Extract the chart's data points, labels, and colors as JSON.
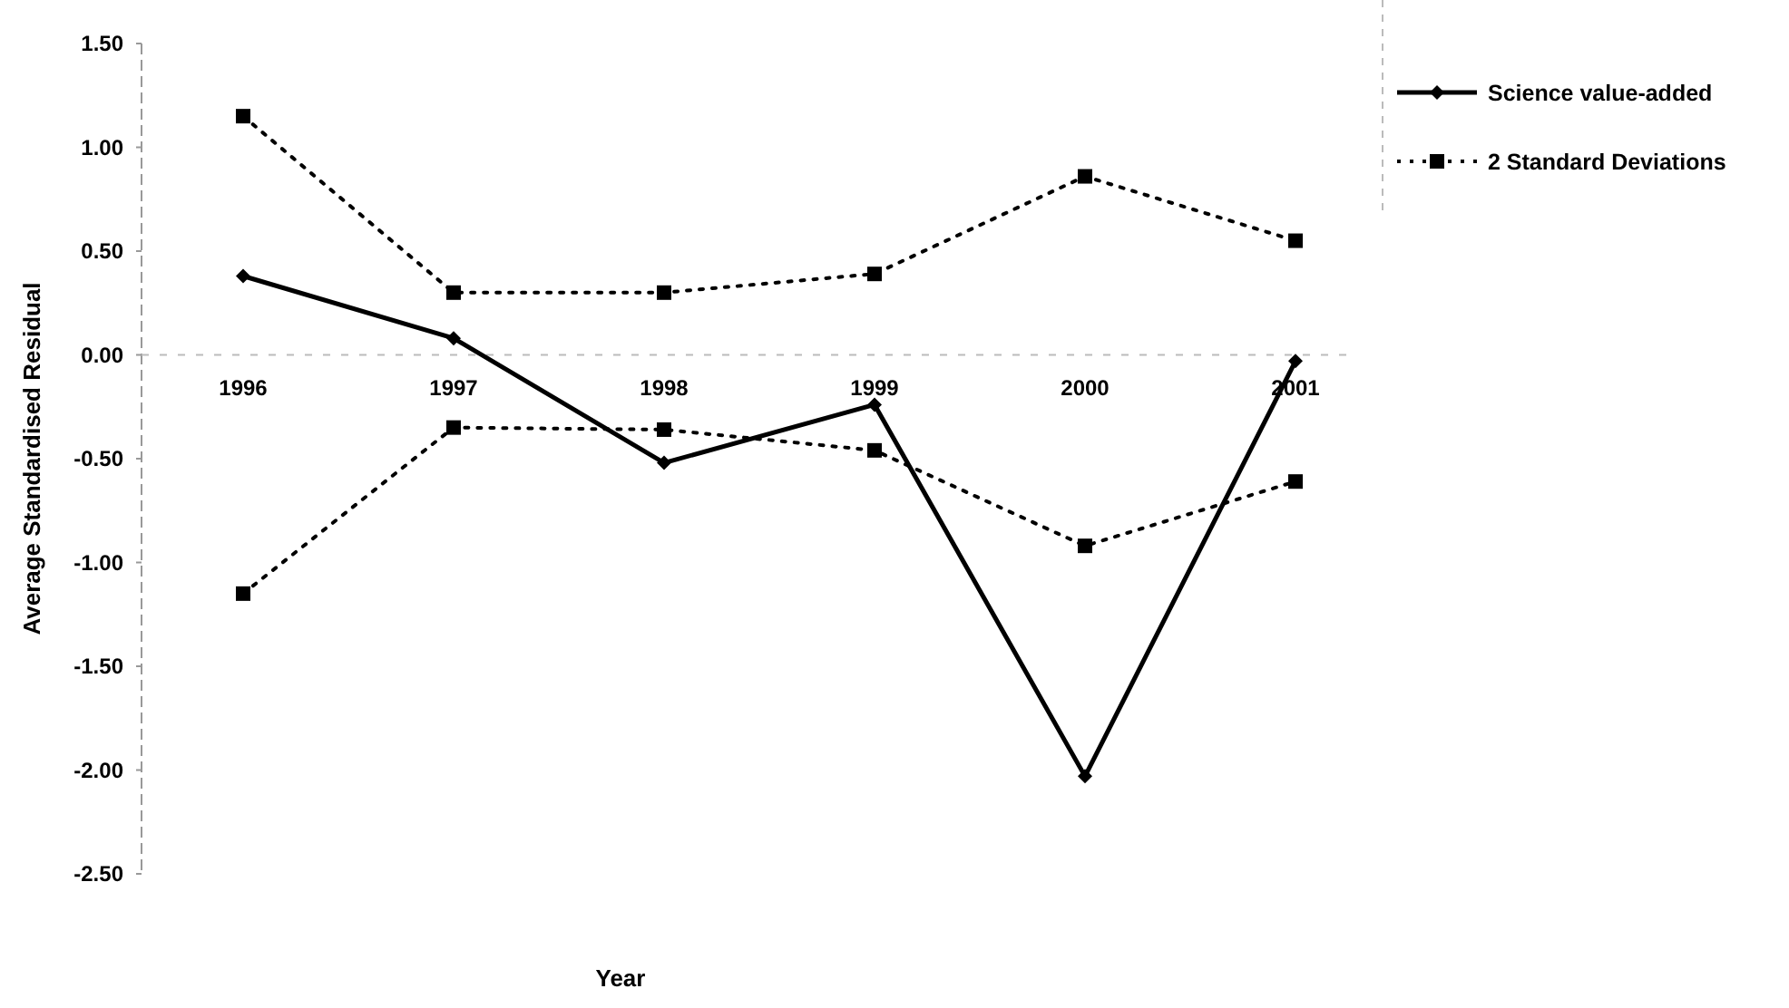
{
  "chart_data": {
    "type": "line",
    "xlabel": "Year",
    "ylabel": "Average Standardised Residual",
    "categories": [
      "1996",
      "1997",
      "1998",
      "1999",
      "2000",
      "2001"
    ],
    "series": [
      {
        "name": "Science value-added",
        "color": "#000000",
        "marker": "diamond",
        "line_style": "solid",
        "values": [
          0.38,
          0.08,
          -0.52,
          -0.24,
          -2.03,
          -0.03
        ]
      },
      {
        "name": "2 Standard Deviations",
        "color": "#000000",
        "marker": "square",
        "line_style": "dotted",
        "values": [
          1.15,
          0.3,
          0.3,
          0.39,
          0.86,
          0.55
        ]
      },
      {
        "color": "#000000",
        "marker": "square",
        "line_style": "dotted",
        "values": [
          -1.15,
          -0.35,
          -0.36,
          -0.46,
          -0.92,
          -0.61
        ]
      }
    ],
    "ylim": [
      -2.5,
      1.5
    ],
    "yticks": [
      {
        "value": 1.5,
        "label": "1.50"
      },
      {
        "value": 1,
        "label": "1.00"
      },
      {
        "value": 0.5,
        "label": "0.50"
      },
      {
        "value": 0,
        "label": "0.00"
      },
      {
        "value": -0.5,
        "label": "-0.50"
      },
      {
        "value": -1,
        "label": "-1.00"
      },
      {
        "value": -1.5,
        "label": "-1.50"
      },
      {
        "value": -2,
        "label": "-2.00"
      },
      {
        "value": -2.5,
        "label": "-2.50"
      }
    ],
    "legend": "top right"
  }
}
